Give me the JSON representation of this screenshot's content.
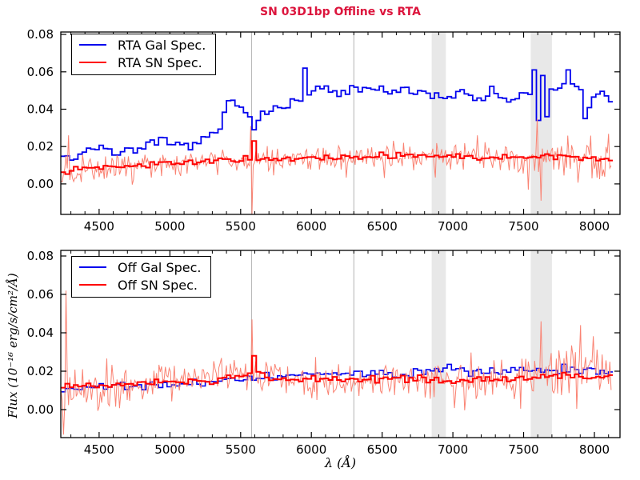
{
  "figure": {
    "title": "SN 03D1bp Offline vs RTA",
    "title_color": "#dc143c",
    "background": "#ffffff"
  },
  "chart_data": [
    {
      "type": "line",
      "subplot": "top",
      "xlim": [
        4229,
        8181
      ],
      "ylim": [
        -0.0163,
        0.0813
      ],
      "xdata": [
        4230,
        8120
      ],
      "xticks": [
        4500,
        5000,
        5500,
        6000,
        6500,
        7000,
        7500,
        8000
      ],
      "x_minor_step": 100,
      "yticks": [
        0.0,
        0.02,
        0.04,
        0.06,
        0.08
      ],
      "ytick_labels": [
        "0.00",
        "0.02",
        "0.04",
        "0.06",
        "0.08"
      ],
      "xlabel": "",
      "ylabel": "",
      "grid": false,
      "legend_position": "upper left",
      "sky_lines": [
        5577,
        6300
      ],
      "skyline_color": "#b3b3b3",
      "telluric_bands": [
        [
          6850,
          6950
        ],
        [
          7550,
          7700
        ]
      ],
      "band_color": "#e8e8e8",
      "legend": [
        {
          "label": "RTA Gal Spec.",
          "color": "#0000ee"
        },
        {
          "label": "RTA SN Spec.",
          "color": "#ff0000"
        }
      ],
      "series": [
        {
          "name": "rta-gal-spec",
          "color": "#0000ee",
          "width": 1.8,
          "style": "step",
          "bin": 30,
          "noise": 0.004,
          "seed": 7,
          "spiky": false,
          "trend": [
            [
              4230,
              0.016
            ],
            [
              4300,
              0.013
            ],
            [
              4400,
              0.019
            ],
            [
              4500,
              0.02
            ],
            [
              4560,
              0.016
            ],
            [
              4650,
              0.018
            ],
            [
              4750,
              0.019
            ],
            [
              4850,
              0.021
            ],
            [
              4950,
              0.022
            ],
            [
              5050,
              0.02
            ],
            [
              5150,
              0.021
            ],
            [
              5250,
              0.024
            ],
            [
              5330,
              0.028
            ],
            [
              5390,
              0.042
            ],
            [
              5450,
              0.043
            ],
            [
              5520,
              0.038
            ],
            [
              5600,
              0.037
            ],
            [
              5700,
              0.039
            ],
            [
              5800,
              0.041
            ],
            [
              5900,
              0.045
            ],
            [
              5990,
              0.049
            ],
            [
              6080,
              0.051
            ],
            [
              6180,
              0.048
            ],
            [
              6280,
              0.05
            ],
            [
              6380,
              0.05
            ],
            [
              6480,
              0.051
            ],
            [
              6570,
              0.048
            ],
            [
              6670,
              0.05
            ],
            [
              6770,
              0.049
            ],
            [
              6870,
              0.048
            ],
            [
              6960,
              0.046
            ],
            [
              7060,
              0.05
            ],
            [
              7160,
              0.045
            ],
            [
              7260,
              0.05
            ],
            [
              7360,
              0.045
            ],
            [
              7460,
              0.046
            ],
            [
              7560,
              0.048
            ],
            [
              7660,
              0.05
            ],
            [
              7760,
              0.052
            ],
            [
              7860,
              0.053
            ],
            [
              7940,
              0.042
            ],
            [
              8020,
              0.05
            ],
            [
              8120,
              0.044
            ]
          ],
          "spikes": [
            {
              "x": 5577,
              "y": 0.029
            },
            {
              "x": 5955,
              "y": 0.062
            },
            {
              "x": 7570,
              "y": 0.061
            },
            {
              "x": 7592,
              "y": 0.034
            },
            {
              "x": 7614,
              "y": 0.058
            },
            {
              "x": 7636,
              "y": 0.036
            },
            {
              "x": 7800,
              "y": 0.061
            },
            {
              "x": 7920,
              "y": 0.035
            }
          ]
        },
        {
          "name": "rta-sn-raw",
          "color": "#fa8373",
          "width": 1,
          "style": "line",
          "bin": 9,
          "seed": 12,
          "spiky": true,
          "noise_profile": [
            [
              4230,
              0.011
            ],
            [
              4700,
              0.009
            ],
            [
              5200,
              0.008
            ],
            [
              6000,
              0.007
            ],
            [
              6800,
              0.008
            ],
            [
              7300,
              0.009
            ],
            [
              7700,
              0.011
            ],
            [
              8120,
              0.012
            ]
          ],
          "trend": [
            [
              4230,
              0.007
            ],
            [
              4400,
              0.009
            ],
            [
              4600,
              0.01
            ],
            [
              4800,
              0.01
            ],
            [
              5000,
              0.011
            ],
            [
              5200,
              0.012
            ],
            [
              5400,
              0.013
            ],
            [
              5600,
              0.013
            ],
            [
              5800,
              0.013
            ],
            [
              6000,
              0.014
            ],
            [
              6200,
              0.014
            ],
            [
              6400,
              0.015
            ],
            [
              6600,
              0.015
            ],
            [
              6800,
              0.015
            ],
            [
              7000,
              0.015
            ],
            [
              7200,
              0.014
            ],
            [
              7400,
              0.014
            ],
            [
              7600,
              0.015
            ],
            [
              7800,
              0.015
            ],
            [
              8000,
              0.013
            ],
            [
              8120,
              0.013
            ]
          ],
          "spikes": [
            {
              "x": 5569,
              "y": 0.031
            },
            {
              "x": 5577,
              "y": -0.016
            },
            {
              "x": 4280,
              "y": 0.026
            },
            {
              "x": 7600,
              "y": 0.035
            },
            {
              "x": 7622,
              "y": -0.009
            }
          ]
        },
        {
          "name": "rta-sn-spec",
          "color": "#ff0000",
          "width": 2,
          "style": "step",
          "bin": 30,
          "noise": 0.0022,
          "seed": 13,
          "spiky": false,
          "trend": [
            [
              4230,
              0.007
            ],
            [
              4400,
              0.009
            ],
            [
              4600,
              0.01
            ],
            [
              4800,
              0.01
            ],
            [
              5000,
              0.011
            ],
            [
              5200,
              0.012
            ],
            [
              5400,
              0.013
            ],
            [
              5600,
              0.013
            ],
            [
              5800,
              0.013
            ],
            [
              6000,
              0.014
            ],
            [
              6200,
              0.014
            ],
            [
              6400,
              0.015
            ],
            [
              6600,
              0.015
            ],
            [
              6800,
              0.015
            ],
            [
              7000,
              0.015
            ],
            [
              7200,
              0.014
            ],
            [
              7400,
              0.014
            ],
            [
              7600,
              0.015
            ],
            [
              7800,
              0.015
            ],
            [
              8000,
              0.013
            ],
            [
              8120,
              0.013
            ]
          ],
          "spikes": [
            {
              "x": 5577,
              "y": 0.023
            }
          ]
        }
      ]
    },
    {
      "type": "line",
      "subplot": "bottom",
      "xlim": [
        4229,
        8181
      ],
      "ylim": [
        -0.0146,
        0.0829
      ],
      "xdata": [
        4230,
        8120
      ],
      "xticks": [
        4500,
        5000,
        5500,
        6000,
        6500,
        7000,
        7500,
        8000
      ],
      "x_minor_step": 100,
      "yticks": [
        0.0,
        0.02,
        0.04,
        0.06,
        0.08
      ],
      "ytick_labels": [
        "0.00",
        "0.02",
        "0.04",
        "0.06",
        "0.08"
      ],
      "xlabel": "λ (Å)",
      "ylabel": "Flux (10⁻¹⁶ erg/s/cm²/Å)",
      "grid": false,
      "legend_position": "upper left",
      "sky_lines": [
        5577,
        6300
      ],
      "skyline_color": "#b3b3b3",
      "telluric_bands": [
        [
          6850,
          6950
        ],
        [
          7550,
          7700
        ]
      ],
      "band_color": "#e8e8e8",
      "legend": [
        {
          "label": "Off Gal Spec.",
          "color": "#0000ee"
        },
        {
          "label": "Off SN Spec.",
          "color": "#ff0000"
        }
      ],
      "series": [
        {
          "name": "off-gal-spec",
          "color": "#0000ee",
          "width": 1.6,
          "style": "step",
          "bin": 30,
          "noise": 0.0035,
          "seed": 21,
          "spiky": false,
          "trend": [
            [
              4230,
              0.01
            ],
            [
              4400,
              0.012
            ],
            [
              4600,
              0.012
            ],
            [
              4800,
              0.013
            ],
            [
              5000,
              0.013
            ],
            [
              5200,
              0.014
            ],
            [
              5400,
              0.015
            ],
            [
              5600,
              0.017
            ],
            [
              5800,
              0.017
            ],
            [
              6000,
              0.018
            ],
            [
              6200,
              0.018
            ],
            [
              6400,
              0.019
            ],
            [
              6600,
              0.019
            ],
            [
              6800,
              0.02
            ],
            [
              7000,
              0.021
            ],
            [
              7200,
              0.02
            ],
            [
              7400,
              0.021
            ],
            [
              7600,
              0.021
            ],
            [
              7800,
              0.021
            ],
            [
              8000,
              0.02
            ],
            [
              8120,
              0.019
            ]
          ],
          "spikes": []
        },
        {
          "name": "off-sn-raw",
          "color": "#fa8373",
          "width": 1,
          "style": "line",
          "bin": 9,
          "seed": 17,
          "spiky": true,
          "noise_profile": [
            [
              4230,
              0.024
            ],
            [
              4500,
              0.016
            ],
            [
              5000,
              0.011
            ],
            [
              5600,
              0.01
            ],
            [
              6200,
              0.011
            ],
            [
              6800,
              0.012
            ],
            [
              7300,
              0.015
            ],
            [
              7800,
              0.018
            ],
            [
              8120,
              0.02
            ]
          ],
          "trend": [
            [
              4230,
              0.012
            ],
            [
              4400,
              0.012
            ],
            [
              4600,
              0.013
            ],
            [
              4800,
              0.013
            ],
            [
              5000,
              0.014
            ],
            [
              5200,
              0.015
            ],
            [
              5400,
              0.016
            ],
            [
              5577,
              0.018
            ],
            [
              5700,
              0.016
            ],
            [
              5900,
              0.016
            ],
            [
              6100,
              0.016
            ],
            [
              6300,
              0.015
            ],
            [
              6500,
              0.016
            ],
            [
              6700,
              0.016
            ],
            [
              6900,
              0.015
            ],
            [
              7100,
              0.015
            ],
            [
              7300,
              0.016
            ],
            [
              7500,
              0.016
            ],
            [
              7700,
              0.018
            ],
            [
              7900,
              0.017
            ],
            [
              8120,
              0.016
            ]
          ],
          "spikes": [
            {
              "x": 5577,
              "y": 0.047
            },
            {
              "x": 4270,
              "y": 0.062
            },
            {
              "x": 4252,
              "y": -0.013
            },
            {
              "x": 7620,
              "y": 0.046
            },
            {
              "x": 7900,
              "y": 0.044
            }
          ]
        },
        {
          "name": "off-sn-spec",
          "color": "#ff0000",
          "width": 2,
          "style": "step",
          "bin": 30,
          "noise": 0.003,
          "seed": 9,
          "spiky": false,
          "trend": [
            [
              4230,
              0.012
            ],
            [
              4400,
              0.012
            ],
            [
              4600,
              0.013
            ],
            [
              4800,
              0.013
            ],
            [
              5000,
              0.014
            ],
            [
              5200,
              0.015
            ],
            [
              5400,
              0.016
            ],
            [
              5577,
              0.018
            ],
            [
              5700,
              0.016
            ],
            [
              5900,
              0.016
            ],
            [
              6100,
              0.016
            ],
            [
              6300,
              0.015
            ],
            [
              6500,
              0.016
            ],
            [
              6700,
              0.016
            ],
            [
              6900,
              0.015
            ],
            [
              7100,
              0.015
            ],
            [
              7300,
              0.016
            ],
            [
              7500,
              0.016
            ],
            [
              7700,
              0.018
            ],
            [
              7900,
              0.017
            ],
            [
              8120,
              0.016
            ]
          ],
          "spikes": [
            {
              "x": 5577,
              "y": 0.028
            }
          ]
        }
      ]
    }
  ]
}
